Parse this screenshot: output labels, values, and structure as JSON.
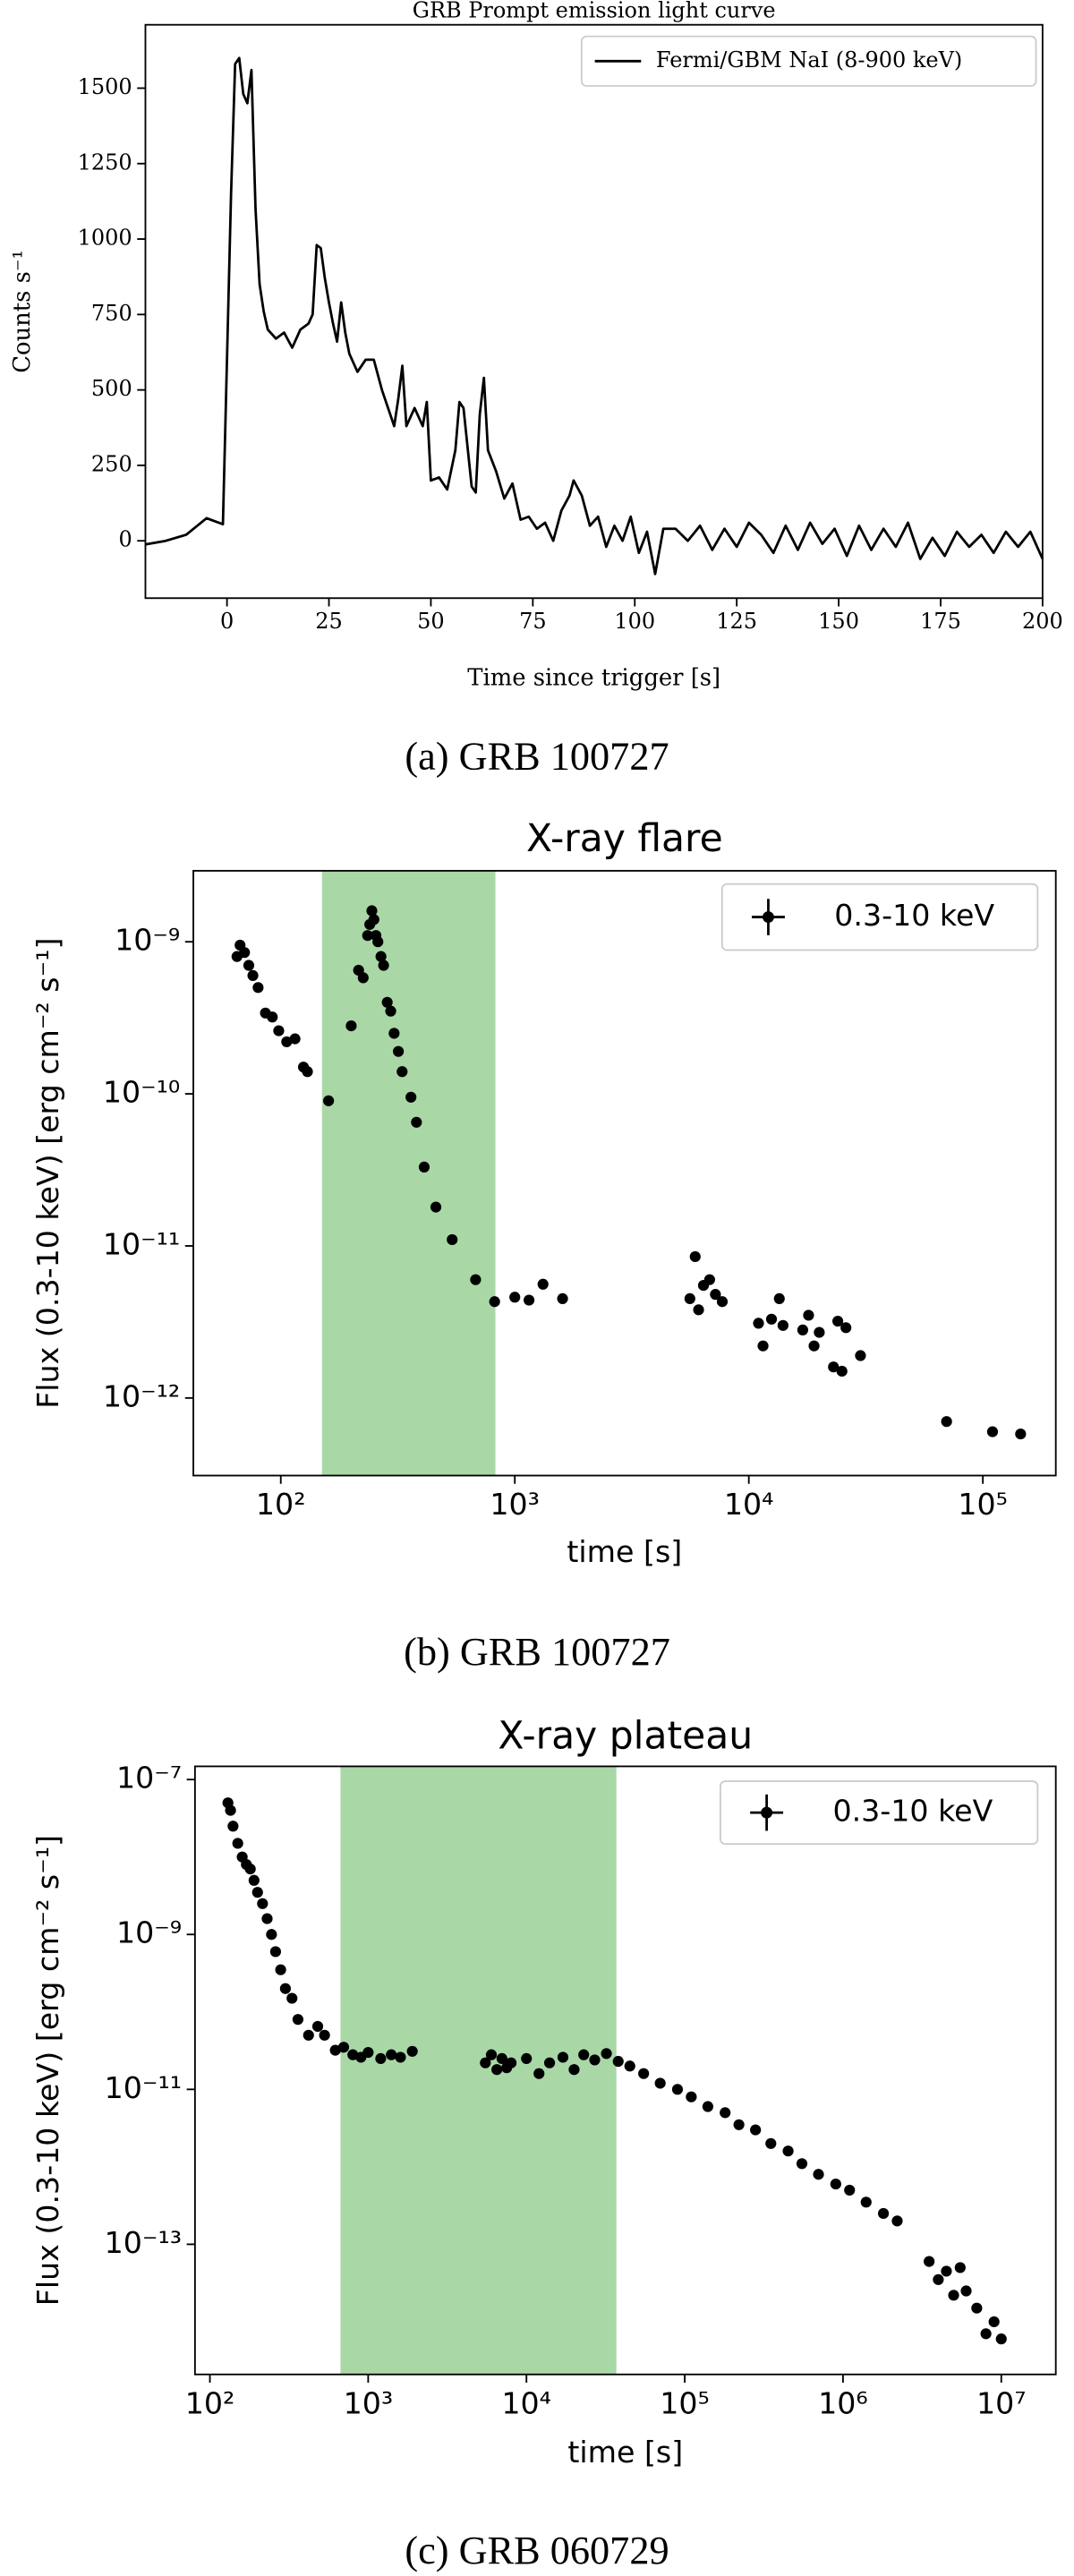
{
  "chart_data": [
    {
      "type": "line",
      "title": "GRB Prompt emission light curve",
      "xlabel": "Time since trigger [s]",
      "ylabel": "Counts s⁻¹",
      "caption": "(a) GRB 100727",
      "x": [
        -20,
        -15,
        -10,
        -5,
        -1,
        0,
        1,
        2,
        3,
        4,
        5,
        6,
        7,
        8,
        9,
        10,
        12,
        14,
        16,
        18,
        20,
        21,
        22,
        23,
        24,
        25,
        26,
        27,
        28,
        29,
        30,
        32,
        34,
        36,
        38,
        40,
        41,
        42,
        43,
        44,
        46,
        48,
        49,
        50,
        52,
        54,
        56,
        57,
        58,
        60,
        61,
        62,
        63,
        64,
        66,
        68,
        70,
        72,
        74,
        76,
        78,
        80,
        82,
        84,
        85,
        87,
        89,
        91,
        93,
        95,
        97,
        99,
        101,
        103,
        105,
        107,
        110,
        113,
        116,
        119,
        122,
        125,
        128,
        131,
        134,
        137,
        140,
        143,
        146,
        149,
        152,
        155,
        158,
        161,
        164,
        167,
        170,
        173,
        176,
        179,
        182,
        185,
        188,
        191,
        194,
        197,
        200
      ],
      "series": [
        {
          "name": "Fermi/GBM NaI (8-900 keV)",
          "color": "#000000",
          "values": [
            -12,
            0,
            20,
            75,
            55,
            600,
            1150,
            1580,
            1600,
            1480,
            1450,
            1560,
            1100,
            850,
            760,
            700,
            670,
            690,
            640,
            700,
            720,
            750,
            980,
            970,
            870,
            790,
            720,
            660,
            790,
            690,
            620,
            560,
            600,
            600,
            500,
            420,
            380,
            470,
            580,
            380,
            440,
            380,
            460,
            200,
            210,
            170,
            300,
            460,
            440,
            180,
            160,
            420,
            540,
            300,
            230,
            140,
            190,
            70,
            80,
            40,
            60,
            0,
            100,
            150,
            200,
            150,
            50,
            80,
            -20,
            50,
            0,
            80,
            -40,
            30,
            -110,
            40,
            40,
            0,
            50,
            -30,
            40,
            -20,
            60,
            20,
            -40,
            50,
            -30,
            60,
            -10,
            40,
            -50,
            50,
            -30,
            40,
            -20,
            60,
            -60,
            10,
            -50,
            30,
            -20,
            20,
            -40,
            30,
            -20,
            30,
            -60
          ]
        }
      ],
      "xlim": [
        -20,
        200
      ],
      "ylim": [
        -190,
        1710
      ],
      "xticks": [
        0,
        25,
        50,
        75,
        100,
        125,
        150,
        175,
        200
      ],
      "yticks": [
        0,
        250,
        500,
        750,
        1000,
        1250,
        1500
      ],
      "legend": "upper right"
    },
    {
      "type": "scatter",
      "title": "X-ray flare",
      "xlabel": "time [s]",
      "ylabel": "Flux (0.3-10 keV) [erg cm⁻² s⁻¹]",
      "caption": "(b) GRB 100727",
      "xscale": "log",
      "yscale": "log",
      "x": [
        65,
        67,
        70,
        73,
        76,
        80,
        86,
        92,
        98,
        106,
        115,
        125,
        130,
        160,
        200,
        215,
        225,
        235,
        240,
        245,
        250,
        255,
        260,
        268,
        275,
        285,
        295,
        305,
        318,
        330,
        360,
        380,
        410,
        460,
        540,
        680,
        820,
        1000,
        1150,
        1320,
        1600,
        5600,
        5900,
        6100,
        6400,
        6800,
        7200,
        7700,
        11000,
        11500,
        12500,
        13500,
        14000,
        17000,
        18000,
        19000,
        20000,
        23000,
        24000,
        25000,
        26000,
        30000,
        70000,
        110000,
        145000
      ],
      "series": [
        {
          "name": "0.3-10 keV",
          "color": "#000000",
          "values": [
            8e-10,
            9.5e-10,
            8.5e-10,
            7e-10,
            6e-10,
            5e-10,
            3.4e-10,
            3.2e-10,
            2.6e-10,
            2.2e-10,
            2.3e-10,
            1.5e-10,
            1.4e-10,
            9e-11,
            2.8e-10,
            6.5e-10,
            5.8e-10,
            1.1e-09,
            1.3e-09,
            1.6e-09,
            1.4e-09,
            1.1e-09,
            1e-09,
            8e-10,
            7e-10,
            4e-10,
            3.5e-10,
            2.5e-10,
            1.9e-10,
            1.4e-10,
            9.5e-11,
            6.5e-11,
            3.3e-11,
            1.8e-11,
            1.1e-11,
            6e-12,
            4.3e-12,
            4.6e-12,
            4.4e-12,
            5.6e-12,
            4.5e-12,
            4.5e-12,
            8.5e-12,
            3.8e-12,
            5.5e-12,
            6e-12,
            4.8e-12,
            4.3e-12,
            3.1e-12,
            2.2e-12,
            3.3e-12,
            4.5e-12,
            3e-12,
            2.8e-12,
            3.5e-12,
            2.2e-12,
            2.7e-12,
            1.6e-12,
            3.2e-12,
            1.5e-12,
            2.9e-12,
            1.9e-12,
            7e-13,
            6e-13,
            5.8e-13
          ]
        }
      ],
      "shaded_span": {
        "xmin": 150,
        "xmax": 826,
        "color": "#a9d8a6"
      },
      "xlim": [
        42.3,
        205000
      ],
      "ylim": [
        3.09e-13,
        2.93e-09
      ],
      "xticks": [
        {
          "value": 100,
          "label": "10²"
        },
        {
          "value": 1000,
          "label": "10³"
        },
        {
          "value": 10000,
          "label": "10⁴"
        },
        {
          "value": 100000,
          "label": "10⁵"
        }
      ],
      "yticks": [
        {
          "value": 1e-12,
          "label": "10⁻¹²"
        },
        {
          "value": 1e-11,
          "label": "10⁻¹¹"
        },
        {
          "value": 1e-10,
          "label": "10⁻¹⁰"
        },
        {
          "value": 1e-09,
          "label": "10⁻⁹"
        }
      ],
      "legend": "upper right"
    },
    {
      "type": "scatter",
      "title": "X-ray plateau",
      "xlabel": "time [s]",
      "ylabel": "Flux (0.3-10 keV) [erg cm⁻² s⁻¹]",
      "caption": "(c) GRB 060729",
      "xscale": "log",
      "yscale": "log",
      "x": [
        130,
        135,
        140,
        150,
        160,
        170,
        180,
        190,
        200,
        215,
        230,
        245,
        260,
        280,
        300,
        330,
        360,
        420,
        480,
        530,
        620,
        700,
        800,
        900,
        1000,
        1200,
        1400,
        1600,
        1900,
        5500,
        6000,
        6500,
        7000,
        7500,
        8000,
        10000,
        12000,
        14000,
        17000,
        20000,
        23000,
        27000,
        32000,
        38000,
        45000,
        55000,
        70000,
        90000,
        110000,
        140000,
        180000,
        220000,
        280000,
        350000,
        450000,
        550000,
        700000,
        900000,
        1100000,
        1400000,
        1800000,
        2200000,
        3500000,
        4000000,
        4500000,
        5000000,
        5500000,
        6000000,
        7000000,
        8000000,
        9000000,
        10000000
      ],
      "series": [
        {
          "name": "0.3-10 keV",
          "color": "#000000",
          "values": [
            5e-08,
            4e-08,
            2.5e-08,
            1.5e-08,
            1e-08,
            8e-09,
            7e-09,
            5e-09,
            3.5e-09,
            2.5e-09,
            1.6e-09,
            1e-09,
            6e-10,
            3.5e-10,
            2e-10,
            1.5e-10,
            8e-11,
            5e-11,
            6.5e-11,
            5e-11,
            3.2e-11,
            3.5e-11,
            2.8e-11,
            2.6e-11,
            3e-11,
            2.5e-11,
            2.8e-11,
            2.6e-11,
            3.1e-11,
            2.2e-11,
            2.8e-11,
            1.8e-11,
            2.5e-11,
            1.9e-11,
            2.2e-11,
            2.5e-11,
            1.6e-11,
            2.2e-11,
            2.6e-11,
            1.8e-11,
            2.8e-11,
            2.4e-11,
            2.9e-11,
            2.3e-11,
            2e-11,
            1.6e-11,
            1.2e-11,
            1e-11,
            8e-12,
            6e-12,
            5e-12,
            3.5e-12,
            3e-12,
            2e-12,
            1.6e-12,
            1.1e-12,
            8e-13,
            6e-13,
            5e-13,
            3.5e-13,
            2.5e-13,
            2e-13,
            6e-14,
            3.5e-14,
            4.5e-14,
            2.2e-14,
            5e-14,
            2.5e-14,
            1.5e-14,
            7e-15,
            1e-14,
            6e-15
          ]
        }
      ],
      "shaded_span": {
        "xmin": 668,
        "xmax": 37000,
        "color": "#a9d8a6"
      },
      "xlim": [
        80.5,
        22100000
      ],
      "ylim": [
        2.09e-15,
        1.48e-07
      ],
      "xticks": [
        {
          "value": 100,
          "label": "10²"
        },
        {
          "value": 1000,
          "label": "10³"
        },
        {
          "value": 10000,
          "label": "10⁴"
        },
        {
          "value": 100000,
          "label": "10⁵"
        },
        {
          "value": 1000000,
          "label": "10⁶"
        },
        {
          "value": 10000000,
          "label": "10⁷"
        }
      ],
      "yticks": [
        {
          "value": 1e-13,
          "label": "10⁻¹³"
        },
        {
          "value": 1e-11,
          "label": "10⁻¹¹"
        },
        {
          "value": 1e-09,
          "label": "10⁻⁹"
        },
        {
          "value": 1e-07,
          "label": "10⁻⁷"
        }
      ],
      "legend": "upper right"
    }
  ]
}
